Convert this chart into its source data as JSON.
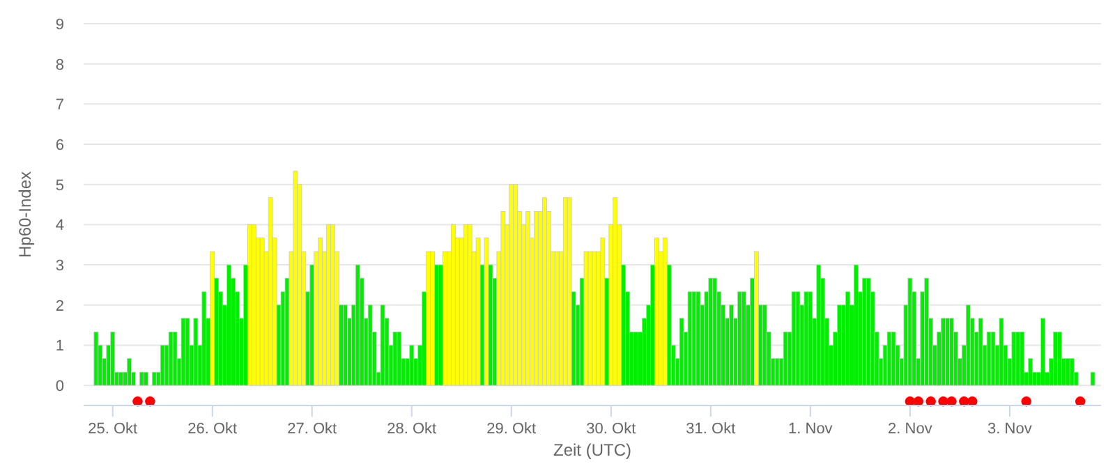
{
  "chart_data": {
    "type": "bar",
    "xlabel": "Zeit (UTC)",
    "ylabel": "Hp60-Index",
    "ylim": [
      -0.5,
      9
    ],
    "yticks": [
      0,
      1,
      2,
      3,
      4,
      5,
      6,
      7,
      8,
      9
    ],
    "xlim": [
      "--10-24T17:00",
      "--11-03T22:00"
    ],
    "xticks": [
      {
        "value": "--10-25",
        "label": "25. Okt"
      },
      {
        "value": "--10-26",
        "label": "26. Okt"
      },
      {
        "value": "--10-27",
        "label": "27. Okt"
      },
      {
        "value": "--10-28",
        "label": "28. Okt"
      },
      {
        "value": "--10-29",
        "label": "29. Okt"
      },
      {
        "value": "--10-30",
        "label": "30. Okt"
      },
      {
        "value": "--10-31",
        "label": "31. Okt"
      },
      {
        "value": "--11-01",
        "label": "1. Nov"
      },
      {
        "value": "--11-02",
        "label": "2. Nov"
      },
      {
        "value": "--11-03",
        "label": "3. Nov"
      }
    ],
    "grid": "y",
    "marker": "circle",
    "series": [
      {
        "x": [
          "--10-24T20:00",
          "--10-24T21:00",
          "--10-24T22:00",
          "--10-24T23:00",
          "--10-25T00:00",
          "--10-25T01:00",
          "--10-25T02:00",
          "--10-25T03:00",
          "--10-25T04:00",
          "--10-25T05:00",
          "--10-25T06:00",
          "--10-25T07:00",
          "--10-25T08:00",
          "--10-25T09:00",
          "--10-25T10:00",
          "--10-25T11:00",
          "--10-25T12:00",
          "--10-25T13:00",
          "--10-25T14:00",
          "--10-25T15:00",
          "--10-25T16:00",
          "--10-25T17:00",
          "--10-25T18:00",
          "--10-25T19:00",
          "--10-25T20:00",
          "--10-25T21:00",
          "--10-25T22:00",
          "--10-25T23:00",
          "--10-26T00:00",
          "--10-26T01:00",
          "--10-26T02:00",
          "--10-26T03:00",
          "--10-26T04:00",
          "--10-26T05:00",
          "--10-26T06:00",
          "--10-26T07:00",
          "--10-26T08:00",
          "--10-26T09:00",
          "--10-26T10:00",
          "--10-26T11:00",
          "--10-26T12:00",
          "--10-26T13:00",
          "--10-26T14:00",
          "--10-26T15:00",
          "--10-26T16:00",
          "--10-26T17:00",
          "--10-26T18:00",
          "--10-26T19:00",
          "--10-26T20:00",
          "--10-26T21:00",
          "--10-26T22:00",
          "--10-26T23:00",
          "--10-27T00:00",
          "--10-27T01:00",
          "--10-27T02:00",
          "--10-27T03:00",
          "--10-27T04:00",
          "--10-27T05:00",
          "--10-27T06:00",
          "--10-27T07:00",
          "--10-27T08:00",
          "--10-27T09:00",
          "--10-27T10:00",
          "--10-27T11:00",
          "--10-27T12:00",
          "--10-27T13:00",
          "--10-27T14:00",
          "--10-27T15:00",
          "--10-27T16:00",
          "--10-27T17:00",
          "--10-27T18:00",
          "--10-27T19:00",
          "--10-27T20:00",
          "--10-27T21:00",
          "--10-27T22:00",
          "--10-27T23:00",
          "--10-28T00:00",
          "--10-28T01:00",
          "--10-28T02:00",
          "--10-28T03:00",
          "--10-28T04:00",
          "--10-28T05:00",
          "--10-28T06:00",
          "--10-28T07:00",
          "--10-28T08:00",
          "--10-28T09:00",
          "--10-28T10:00",
          "--10-28T11:00",
          "--10-28T12:00",
          "--10-28T13:00",
          "--10-28T14:00",
          "--10-28T15:00",
          "--10-28T16:00",
          "--10-28T17:00",
          "--10-28T18:00",
          "--10-28T19:00",
          "--10-28T20:00",
          "--10-28T21:00",
          "--10-28T22:00",
          "--10-28T23:00",
          "--10-29T00:00",
          "--10-29T01:00",
          "--10-29T02:00",
          "--10-29T03:00",
          "--10-29T04:00",
          "--10-29T05:00",
          "--10-29T06:00",
          "--10-29T07:00",
          "--10-29T08:00",
          "--10-29T09:00",
          "--10-29T10:00",
          "--10-29T11:00",
          "--10-29T12:00",
          "--10-29T13:00",
          "--10-29T14:00",
          "--10-29T15:00",
          "--10-29T16:00",
          "--10-29T17:00",
          "--10-29T18:00",
          "--10-29T19:00",
          "--10-29T20:00",
          "--10-29T21:00",
          "--10-29T22:00",
          "--10-29T23:00",
          "--10-30T00:00",
          "--10-30T01:00",
          "--10-30T02:00",
          "--10-30T03:00",
          "--10-30T04:00",
          "--10-30T05:00",
          "--10-30T06:00",
          "--10-30T07:00",
          "--10-30T08:00",
          "--10-30T09:00",
          "--10-30T10:00",
          "--10-30T11:00",
          "--10-30T12:00",
          "--10-30T13:00",
          "--10-30T14:00",
          "--10-30T15:00",
          "--10-30T16:00",
          "--10-30T17:00",
          "--10-30T18:00",
          "--10-30T19:00",
          "--10-30T20:00",
          "--10-30T21:00",
          "--10-30T22:00",
          "--10-30T23:00",
          "--10-31T00:00",
          "--10-31T01:00",
          "--10-31T02:00",
          "--10-31T03:00",
          "--10-31T04:00",
          "--10-31T05:00",
          "--10-31T06:00",
          "--10-31T07:00",
          "--10-31T08:00",
          "--10-31T09:00",
          "--10-31T10:00",
          "--10-31T11:00",
          "--10-31T12:00",
          "--10-31T13:00",
          "--10-31T14:00",
          "--10-31T15:00",
          "--10-31T16:00",
          "--10-31T17:00",
          "--10-31T18:00",
          "--10-31T19:00",
          "--10-31T20:00",
          "--10-31T21:00",
          "--10-31T22:00",
          "--10-31T23:00",
          "--11-01T00:00",
          "--11-01T01:00",
          "--11-01T02:00",
          "--11-01T03:00",
          "--11-01T04:00",
          "--11-01T05:00",
          "--11-01T06:00",
          "--11-01T07:00",
          "--11-01T08:00",
          "--11-01T09:00",
          "--11-01T10:00",
          "--11-01T11:00",
          "--11-01T12:00",
          "--11-01T13:00",
          "--11-01T14:00",
          "--11-01T15:00",
          "--11-01T16:00",
          "--11-01T17:00",
          "--11-01T18:00",
          "--11-01T19:00",
          "--11-01T20:00",
          "--11-01T21:00",
          "--11-01T22:00",
          "--11-01T23:00",
          "--11-02T00:00",
          "--11-02T01:00",
          "--11-02T02:00",
          "--11-02T03:00",
          "--11-02T04:00",
          "--11-02T05:00",
          "--11-02T06:00",
          "--11-02T07:00",
          "--11-02T08:00",
          "--11-02T09:00",
          "--11-02T10:00",
          "--11-02T11:00",
          "--11-02T12:00",
          "--11-02T13:00",
          "--11-02T14:00",
          "--11-02T15:00",
          "--11-02T16:00",
          "--11-02T17:00",
          "--11-02T18:00",
          "--11-02T19:00",
          "--11-02T20:00",
          "--11-02T21:00",
          "--11-02T22:00",
          "--11-02T23:00",
          "--11-03T00:00",
          "--11-03T01:00",
          "--11-03T02:00",
          "--11-03T03:00",
          "--11-03T04:00",
          "--11-03T05:00",
          "--11-03T06:00",
          "--11-03T07:00",
          "--11-03T08:00",
          "--11-03T09:00",
          "--11-03T10:00",
          "--11-03T11:00",
          "--11-03T12:00",
          "--11-03T13:00",
          "--11-03T14:00",
          "--11-03T15:00",
          "--11-03T16:00",
          "--11-03T17:00",
          "--11-03T18:00",
          "--11-03T19:00",
          "--11-03T20:00"
        ],
        "values": [
          1.33,
          1,
          0.67,
          1,
          1.33,
          0.33,
          0.33,
          0.33,
          0.67,
          0.33,
          0,
          0.33,
          0.33,
          0,
          0.33,
          0.33,
          1,
          1,
          1.33,
          1.33,
          0.67,
          1.67,
          1.67,
          1,
          1.67,
          1,
          2.33,
          1.67,
          3.33,
          2.67,
          2.33,
          2,
          3,
          2.67,
          2.33,
          1.67,
          3,
          4,
          4,
          3.67,
          3.67,
          3.33,
          4.67,
          3.67,
          2,
          2.33,
          2.67,
          3.33,
          5.33,
          5,
          3.33,
          2.33,
          3,
          3.33,
          3.67,
          3.33,
          4,
          4,
          3.33,
          2,
          2,
          1.67,
          2,
          3,
          2.67,
          1.67,
          2,
          1.33,
          0.33,
          2,
          1.67,
          1,
          1.33,
          1.33,
          0.67,
          0.67,
          1,
          0.67,
          1,
          2.33,
          3.33,
          3.33,
          3,
          3,
          3.33,
          3.33,
          4,
          3.67,
          3.67,
          4,
          4,
          3.33,
          3.67,
          3,
          3.67,
          3,
          2.67,
          3.33,
          4.33,
          4,
          5,
          5,
          4.33,
          4,
          4.33,
          3.67,
          4.33,
          4.33,
          4.67,
          4.33,
          3.33,
          3.33,
          3.33,
          4.67,
          4.67,
          2.33,
          2,
          2.67,
          3.33,
          3.33,
          3.33,
          3.33,
          3.67,
          2.67,
          4,
          4.67,
          4,
          3,
          2.33,
          1.33,
          1.33,
          1.33,
          1.67,
          2,
          3,
          3.67,
          3.33,
          3.67,
          3,
          1,
          0.67,
          1.67,
          1.33,
          2.33,
          2.33,
          2.33,
          2,
          2.33,
          2.67,
          2.67,
          2.33,
          2,
          1.67,
          2,
          1.67,
          2.33,
          2.33,
          2,
          2.67,
          3.33,
          2,
          2,
          1.33,
          0.67,
          0.67,
          0.67,
          1.33,
          1.33,
          2.33,
          2.33,
          2,
          2.33,
          2.33,
          1.67,
          3,
          2.67,
          1.67,
          1,
          1.33,
          2,
          2,
          2.33,
          2,
          3,
          2.33,
          2.67,
          2.67,
          2.33,
          1.33,
          0.67,
          1,
          1.33,
          1.33,
          1,
          0.67,
          2,
          2.67,
          2.33,
          0.67,
          2.33,
          2.67,
          1.67,
          1,
          1.33,
          1.67,
          1.67,
          1.67,
          1.33,
          0.67,
          1,
          2,
          1.67,
          1.33,
          1.67,
          1,
          1.33,
          1.33,
          1,
          1.67,
          1,
          0.67,
          1.33,
          1.33,
          1.33,
          0.33,
          0.67,
          0.33,
          0.33,
          1.67,
          0.33,
          0.67,
          1.33,
          1.33,
          0.67,
          0.67,
          0.67,
          0.33,
          0,
          0,
          0,
          0.33
        ],
        "colors": [
          "#00ee00",
          "#00ee00",
          "#00ee00",
          "#00ee00",
          "#00ee00",
          "#00ee00",
          "#00ee00",
          "#00ee00",
          "#00ee00",
          "#00ee00",
          "#00ee00",
          "#00ee00",
          "#00ee00",
          "#00ee00",
          "#00ee00",
          "#00ee00",
          "#00ee00",
          "#00ee00",
          "#00ee00",
          "#00ee00",
          "#00ee00",
          "#00ee00",
          "#00ee00",
          "#00ee00",
          "#00ee00",
          "#00ee00",
          "#00ee00",
          "#00ee00",
          "#ffff00",
          "#00ee00",
          "#00ee00",
          "#00ee00",
          "#00ee00",
          "#00ee00",
          "#00ee00",
          "#00ee00",
          "#00ee00",
          "#ffff00",
          "#ffff00",
          "#ffff00",
          "#ffff00",
          "#ffff00",
          "#ffff00",
          "#ffff00",
          "#00ee00",
          "#00ee00",
          "#00ee00",
          "#ffff00",
          "#ffff00",
          "#ffff00",
          "#ffff00",
          "#00ee00",
          "#00ee00",
          "#ffff00",
          "#ffff00",
          "#ffff00",
          "#ffff00",
          "#ffff00",
          "#ffff00",
          "#00ee00",
          "#00ee00",
          "#00ee00",
          "#00ee00",
          "#00ee00",
          "#00ee00",
          "#00ee00",
          "#00ee00",
          "#00ee00",
          "#00ee00",
          "#00ee00",
          "#00ee00",
          "#00ee00",
          "#00ee00",
          "#00ee00",
          "#00ee00",
          "#00ee00",
          "#00ee00",
          "#00ee00",
          "#00ee00",
          "#00ee00",
          "#ffff00",
          "#ffff00",
          "#00ee00",
          "#00ee00",
          "#ffff00",
          "#ffff00",
          "#ffff00",
          "#ffff00",
          "#ffff00",
          "#ffff00",
          "#ffff00",
          "#ffff00",
          "#ffff00",
          "#00ee00",
          "#ffff00",
          "#00ee00",
          "#00ee00",
          "#ffff00",
          "#ffff00",
          "#ffff00",
          "#ffff00",
          "#ffff00",
          "#ffff00",
          "#ffff00",
          "#ffff00",
          "#ffff00",
          "#ffff00",
          "#ffff00",
          "#ffff00",
          "#ffff00",
          "#ffff00",
          "#ffff00",
          "#ffff00",
          "#ffff00",
          "#ffff00",
          "#00ee00",
          "#00ee00",
          "#00ee00",
          "#ffff00",
          "#ffff00",
          "#ffff00",
          "#ffff00",
          "#ffff00",
          "#00ee00",
          "#ffff00",
          "#ffff00",
          "#ffff00",
          "#00ee00",
          "#00ee00",
          "#00ee00",
          "#00ee00",
          "#00ee00",
          "#00ee00",
          "#00ee00",
          "#00ee00",
          "#ffff00",
          "#ffff00",
          "#ffff00",
          "#00ee00",
          "#00ee00",
          "#00ee00",
          "#00ee00",
          "#00ee00",
          "#00ee00",
          "#00ee00",
          "#00ee00",
          "#00ee00",
          "#00ee00",
          "#00ee00",
          "#00ee00",
          "#00ee00",
          "#00ee00",
          "#00ee00",
          "#00ee00",
          "#00ee00",
          "#00ee00",
          "#00ee00",
          "#00ee00",
          "#00ee00",
          "#ffff00",
          "#00ee00",
          "#00ee00",
          "#00ee00",
          "#00ee00",
          "#00ee00",
          "#00ee00",
          "#00ee00",
          "#00ee00",
          "#00ee00",
          "#00ee00",
          "#00ee00",
          "#00ee00",
          "#00ee00",
          "#00ee00",
          "#00ee00",
          "#00ee00",
          "#00ee00",
          "#00ee00",
          "#00ee00",
          "#00ee00",
          "#00ee00",
          "#00ee00",
          "#00ee00",
          "#00ee00",
          "#00ee00",
          "#00ee00",
          "#00ee00",
          "#00ee00",
          "#00ee00",
          "#00ee00",
          "#00ee00",
          "#00ee00",
          "#00ee00",
          "#00ee00",
          "#00ee00",
          "#00ee00",
          "#00ee00",
          "#00ee00",
          "#00ee00",
          "#00ee00",
          "#00ee00",
          "#00ee00",
          "#00ee00",
          "#00ee00",
          "#00ee00",
          "#00ee00",
          "#00ee00",
          "#00ee00",
          "#00ee00",
          "#00ee00",
          "#00ee00",
          "#00ee00",
          "#00ee00",
          "#00ee00",
          "#00ee00",
          "#00ee00",
          "#00ee00",
          "#00ee00",
          "#00ee00",
          "#00ee00",
          "#00ee00",
          "#00ee00",
          "#00ee00",
          "#00ee00",
          "#00ee00",
          "#00ee00",
          "#00ee00",
          "#00ee00",
          "#00ee00",
          "#00ee00",
          "#00ee00",
          "#00ee00",
          "#00ee00",
          "#00ee00",
          "#00ee00",
          "#00ee00",
          "#00ee00",
          "#00ee00",
          "#00ee00",
          "#00ee00",
          "#00ee00"
        ]
      },
      {
        "type": "scatter",
        "x": [
          "--10-25T06:00",
          "--10-25T09:00",
          "--11-02T00:00",
          "--11-02T02:00",
          "--11-02T05:00",
          "--11-02T08:00",
          "--11-02T10:00",
          "--11-02T13:00",
          "--11-02T15:00",
          "--11-03T04:00",
          "--11-03T17:00"
        ],
        "values": [
          -0.4,
          -0.4,
          -0.4,
          -0.4,
          -0.4,
          -0.4,
          -0.4,
          -0.4,
          -0.4,
          -0.4,
          -0.4
        ],
        "color": "#ff0000"
      }
    ]
  }
}
